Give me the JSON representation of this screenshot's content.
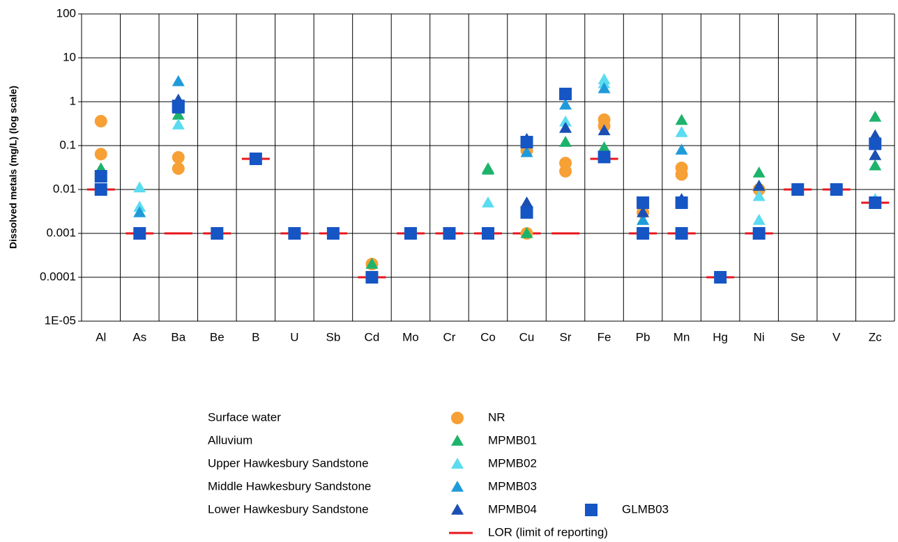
{
  "chart_data": {
    "type": "scatter",
    "ylabel": "Dissolved metals (mg/L) (log scale)",
    "log_y": true,
    "grid": true,
    "categories": [
      "Al",
      "As",
      "Ba",
      "Be",
      "B",
      "U",
      "Sb",
      "Cd",
      "Mo",
      "Cr",
      "Co",
      "Cu",
      "Sr",
      "Fe",
      "Pb",
      "Mn",
      "Hg",
      "Ni",
      "Se",
      "V",
      "Zc"
    ],
    "ylim": [
      1e-05,
      100
    ],
    "yticks": [
      100,
      10,
      1,
      0.1,
      0.01,
      0.001,
      0.0001,
      {
        "value": 1e-05,
        "label": "1E-05"
      }
    ],
    "series": [
      {
        "name": "LOR (limit of reporting)",
        "marker": "line",
        "color": "#e8151b",
        "values": [
          [
            0.01
          ],
          [
            0.001
          ],
          [
            0.001
          ],
          [
            0.001
          ],
          [
            0.05
          ],
          [
            0.001
          ],
          [
            0.001
          ],
          [
            0.0001
          ],
          [
            0.001
          ],
          [
            0.001
          ],
          [
            0.001
          ],
          [
            0.001
          ],
          [
            0.001
          ],
          [
            0.05
          ],
          [
            0.001
          ],
          [
            0.001
          ],
          [
            0.0001
          ],
          [
            0.001
          ],
          [
            0.01
          ],
          [
            0.01
          ],
          [
            0.005
          ]
        ]
      },
      {
        "name": "NR",
        "group": "Surface water",
        "marker": "circle",
        "color": "#f7a035",
        "values": [
          [
            0.36,
            0.064
          ],
          [],
          [
            0.054,
            0.03
          ],
          [],
          [],
          [],
          [],
          [
            0.0002
          ],
          [],
          [],
          [],
          [
            0.077,
            0.001
          ],
          [
            0.04,
            0.026
          ],
          [
            0.39,
            0.28
          ],
          [
            0.003
          ],
          [
            0.031,
            0.022
          ],
          [],
          [
            0.01
          ],
          [],
          [],
          []
        ]
      },
      {
        "name": "MPMB01",
        "group": "Alluvium",
        "marker": "triangle",
        "color": "#1db36b",
        "values": [
          [
            0.03
          ],
          [],
          [
            0.5
          ],
          [],
          [],
          [],
          [],
          [
            0.0002
          ],
          [],
          [],
          [
            0.03,
            0.028
          ],
          [
            0.001
          ],
          [
            0.12
          ],
          [
            0.09
          ],
          [],
          [
            0.38
          ],
          [],
          [
            0.024,
            0.012
          ],
          [],
          [],
          [
            0.45,
            0.035
          ]
        ]
      },
      {
        "name": "MPMB02",
        "group": "Upper Hawkesbury Sandstone",
        "marker": "triangle",
        "color": "#5bdcf0",
        "values": [
          [],
          [
            0.011,
            0.004
          ],
          [
            0.3
          ],
          [],
          [],
          [],
          [],
          [],
          [],
          [],
          [
            0.005
          ],
          [],
          [
            0.35,
            0.25
          ],
          [
            3.2,
            2.6
          ],
          [
            0.002
          ],
          [
            0.2
          ],
          [],
          [
            0.007,
            0.002
          ],
          [],
          [],
          [
            0.006
          ]
        ]
      },
      {
        "name": "MPMB03",
        "group": "Middle Hawkesbury Sandstone",
        "marker": "triangle",
        "color": "#1f9bd9",
        "values": [
          [],
          [
            0.003
          ],
          [
            2.9
          ],
          [],
          [],
          [],
          [],
          [],
          [],
          [],
          [],
          [
            0.07
          ],
          [
            0.85
          ],
          [
            2.0
          ],
          [
            0.002
          ],
          [
            0.08
          ],
          [],
          [],
          [],
          [],
          [
            0.15
          ]
        ]
      },
      {
        "name": "MPMB04",
        "group": "Lower Hawkesbury Sandstone",
        "marker": "triangle",
        "color": "#1b4fb3",
        "values": [
          [],
          [],
          [
            1.1
          ],
          [],
          [],
          [],
          [],
          [],
          [],
          [],
          [],
          [
            0.14,
            0.005
          ],
          [
            0.25
          ],
          [
            0.22
          ],
          [
            0.003
          ],
          [
            0.006
          ],
          [],
          [
            0.012
          ],
          [],
          [],
          [
            0.17,
            0.06
          ]
        ]
      },
      {
        "name": "GLMB03",
        "marker": "square",
        "color": "#1655c4",
        "values": [
          [
            0.02,
            0.01
          ],
          [
            0.001
          ],
          [
            0.8,
            0.75
          ],
          [
            0.001
          ],
          [
            0.05
          ],
          [
            0.001
          ],
          [
            0.001
          ],
          [
            0.0001
          ],
          [
            0.001
          ],
          [
            0.001
          ],
          [
            0.001
          ],
          [
            0.12,
            0.003
          ],
          [
            1.5
          ],
          [
            0.055
          ],
          [
            0.005,
            0.001
          ],
          [
            0.005,
            0.001
          ],
          [
            0.0001
          ],
          [
            0.001
          ],
          [
            0.01
          ],
          [
            0.01
          ],
          [
            0.11,
            0.005
          ]
        ]
      }
    ]
  }
}
